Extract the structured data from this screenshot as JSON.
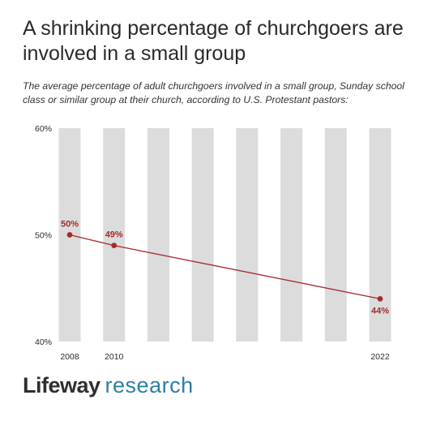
{
  "title": "A shrinking percentage of churchgoers are involved in a small group",
  "subtitle": "The average percentage of adult churchgoers involved in a small group, Sunday school class or similar group at their church, according to U.S. Protestant pastors:",
  "logo": {
    "brand": "Lifeway",
    "research": "research"
  },
  "colors": {
    "line": "#a82a2a",
    "band": "#dcdcdc",
    "text": "#2b2b2b",
    "brand_blue": "#2d7fa6"
  },
  "chart_data": {
    "type": "line",
    "title": "A shrinking percentage of churchgoers are involved in a small group",
    "x": [
      2008,
      2010,
      2022
    ],
    "x_tick_labels": [
      "2008",
      "2010",
      "2022"
    ],
    "xlim": [
      2008,
      2022
    ],
    "ylim": [
      40,
      60
    ],
    "y_ticks": [
      40,
      50,
      60
    ],
    "y_tick_labels": [
      "40%",
      "50%",
      "60%"
    ],
    "series": [
      {
        "values": [
          50,
          49,
          44
        ],
        "data_labels": [
          "50%",
          "49%",
          "44%"
        ]
      }
    ],
    "grid": "vertical bands",
    "legend": "none"
  }
}
